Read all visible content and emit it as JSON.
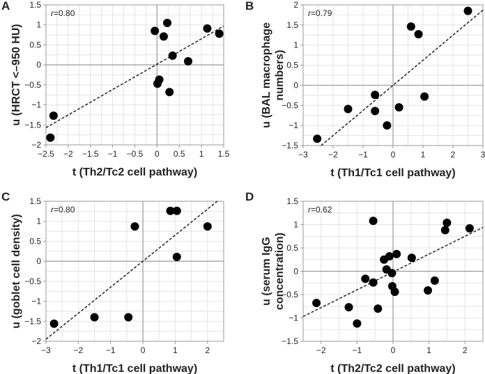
{
  "chart_data": [
    {
      "type": "scatter",
      "panel": "A",
      "r_label": "r",
      "r_value": "=0.80",
      "xlabel": "t (Th2/Tc2 cell pathway)",
      "ylabel": "u (HRCT <–950 HU)",
      "xlim": [
        -2.5,
        1.5
      ],
      "ylim": [
        -2,
        1.5
      ],
      "xticks": [
        -2.5,
        -2,
        -1.5,
        -1,
        -0.5,
        0,
        0.5,
        1,
        1.5
      ],
      "yticks": [
        -2,
        -1.5,
        -1,
        -0.5,
        0,
        0.5,
        1,
        1.5
      ],
      "points": [
        [
          -2.4,
          -1.82
        ],
        [
          -2.33,
          -1.27
        ],
        [
          -0.05,
          0.85
        ],
        [
          0.15,
          0.71
        ],
        [
          0.23,
          1.05
        ],
        [
          0.35,
          0.23
        ],
        [
          0.7,
          0.09
        ],
        [
          1.13,
          0.91
        ],
        [
          1.4,
          0.78
        ],
        [
          0.05,
          -0.37
        ],
        [
          0.01,
          -0.47
        ],
        [
          0.28,
          -0.68
        ]
      ],
      "fit_line": [
        [
          -2.5,
          -1.57
        ],
        [
          1.5,
          0.97
        ]
      ]
    },
    {
      "type": "scatter",
      "panel": "B",
      "r_label": "r",
      "r_value": "=0.79",
      "xlabel": "t (Th1/Tc1 cell pathway)",
      "ylabel": "u (BAL macrophage numbers)",
      "ylabel_lines": [
        "u (BAL macrophage",
        "numbers)"
      ],
      "xlim": [
        -3,
        3
      ],
      "ylim": [
        -1.5,
        2
      ],
      "xticks": [
        -3,
        -2,
        -1,
        0,
        1,
        2,
        3
      ],
      "yticks": [
        -1.5,
        -1,
        -0.5,
        0,
        0.5,
        1,
        1.5,
        2
      ],
      "points": [
        [
          -2.53,
          -1.33
        ],
        [
          -1.5,
          -0.59
        ],
        [
          -0.6,
          -0.24
        ],
        [
          -0.6,
          -0.64
        ],
        [
          -0.2,
          -1.0
        ],
        [
          0.2,
          -0.55
        ],
        [
          0.6,
          1.46
        ],
        [
          0.85,
          1.27
        ],
        [
          1.05,
          -0.28
        ],
        [
          2.5,
          1.85
        ]
      ],
      "fit_line": [
        [
          -2.4,
          -1.5
        ],
        [
          3,
          1.87
        ]
      ]
    },
    {
      "type": "scatter",
      "panel": "C",
      "r_label": "r",
      "r_value": "=0.80",
      "xlabel": "t (Th1/Tc1 cell pathway)",
      "ylabel": "u (goblet cell density)",
      "xlim": [
        -3,
        2.5
      ],
      "ylim": [
        -2,
        1.5
      ],
      "xticks": [
        -3,
        -2,
        -1,
        0,
        1,
        2
      ],
      "yticks": [
        -2,
        -1.5,
        -1,
        -0.5,
        0,
        0.5,
        1,
        1.5
      ],
      "points": [
        [
          -2.75,
          -1.56
        ],
        [
          -1.5,
          -1.4
        ],
        [
          -0.45,
          -1.4
        ],
        [
          -0.25,
          0.87
        ],
        [
          0.85,
          1.26
        ],
        [
          1.05,
          1.26
        ],
        [
          1.05,
          0.11
        ],
        [
          2,
          0.87
        ]
      ],
      "fit_line": [
        [
          -3,
          -1.95
        ],
        [
          2.3,
          1.5
        ]
      ]
    },
    {
      "type": "scatter",
      "panel": "D",
      "r_label": "r",
      "r_value": "=0.62",
      "xlabel": "t (Th2/Tc2 cell pathway)",
      "ylabel": "u (serum IgG concentration)",
      "ylabel_lines": [
        "u (serum IgG",
        "concentration)"
      ],
      "xlim": [
        -2.5,
        2.5
      ],
      "ylim": [
        -1.5,
        1.5
      ],
      "xticks": [
        -2,
        -1,
        0,
        1,
        2
      ],
      "yticks": [
        -1.5,
        -1,
        -0.5,
        0,
        0.5,
        1,
        1.5
      ],
      "points": [
        [
          -2.13,
          -0.68
        ],
        [
          -1.23,
          -0.77
        ],
        [
          -1.0,
          -1.12
        ],
        [
          -0.77,
          -0.16
        ],
        [
          -0.55,
          1.08
        ],
        [
          -0.55,
          -0.24
        ],
        [
          -0.42,
          -0.8
        ],
        [
          -0.25,
          0.25
        ],
        [
          -0.18,
          0.04
        ],
        [
          -0.1,
          0.32
        ],
        [
          0.1,
          0.37
        ],
        [
          -0.03,
          -0.04
        ],
        [
          -0.02,
          -0.32
        ],
        [
          0.05,
          -0.44
        ],
        [
          0.52,
          0.29
        ],
        [
          0.97,
          -0.41
        ],
        [
          1.16,
          -0.2
        ],
        [
          1.45,
          0.88
        ],
        [
          1.5,
          1.04
        ],
        [
          2.13,
          0.92
        ]
      ],
      "fit_line": [
        [
          -2.5,
          -0.97
        ],
        [
          2.5,
          0.94
        ]
      ]
    }
  ]
}
